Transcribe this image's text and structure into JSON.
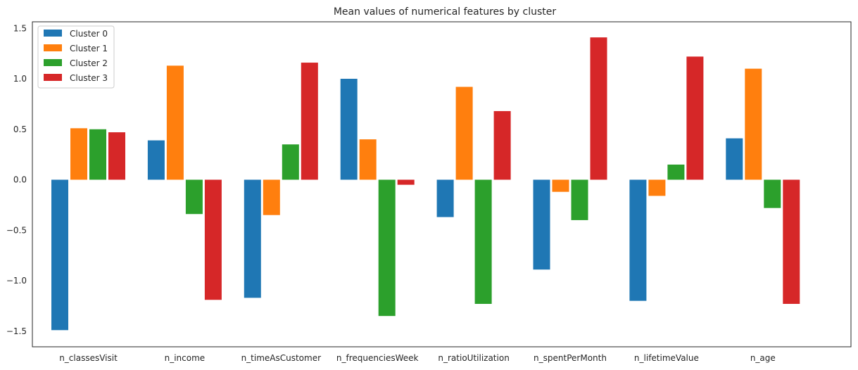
{
  "chart_data": {
    "type": "bar",
    "title": "Mean values of numerical features by cluster",
    "xlabel": "",
    "ylabel": "",
    "ylim": [
      -1.65,
      1.55
    ],
    "yticks": [
      -1.5,
      -1.0,
      -0.5,
      0.0,
      0.5,
      1.0,
      1.5
    ],
    "ytick_labels": [
      "−1.5",
      "−1.0",
      "−0.5",
      "0.0",
      "0.5",
      "1.0",
      "1.5"
    ],
    "grid": false,
    "legend_position": "top-left",
    "categories": [
      "n_classesVisit",
      "n_income",
      "n_timeAsCustomer",
      "n_frequenciesWeek",
      "n_ratioUtilization",
      "n_spentPerMonth",
      "n_lifetimeValue",
      "n_age"
    ],
    "series": [
      {
        "name": "Cluster 0",
        "color": "#1f77b4",
        "values": [
          -1.49,
          0.39,
          -1.17,
          1.0,
          -0.37,
          -0.89,
          -1.2,
          0.41
        ]
      },
      {
        "name": "Cluster 1",
        "color": "#ff7f0e",
        "values": [
          0.51,
          1.13,
          -0.35,
          0.4,
          0.92,
          -0.12,
          -0.16,
          1.1
        ]
      },
      {
        "name": "Cluster 2",
        "color": "#2ca02c",
        "values": [
          0.5,
          -0.34,
          0.35,
          -1.35,
          -1.23,
          -0.4,
          0.15,
          -0.28
        ]
      },
      {
        "name": "Cluster 3",
        "color": "#d62728",
        "values": [
          0.47,
          -1.19,
          1.16,
          -0.05,
          0.68,
          1.41,
          1.22,
          -1.23
        ]
      }
    ]
  }
}
